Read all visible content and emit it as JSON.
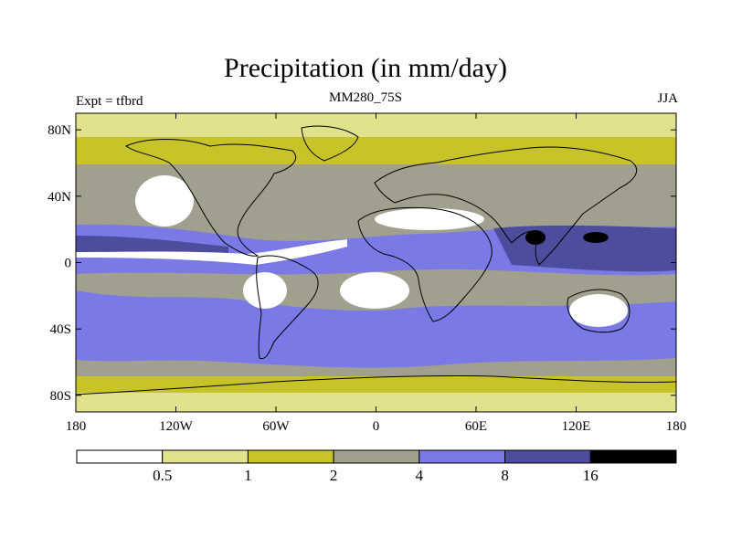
{
  "title": "Precipitation (in mm/day)",
  "experiment_label": "Expt = tfbrd",
  "case_label": "MM280_75S",
  "season_label": "JJA",
  "y_ticks": [
    {
      "lat": 80,
      "label": "80N"
    },
    {
      "lat": 40,
      "label": "40N"
    },
    {
      "lat": 0,
      "label": "0"
    },
    {
      "lat": -40,
      "label": "40S"
    },
    {
      "lat": -80,
      "label": "80S"
    }
  ],
  "x_ticks": [
    {
      "lon": -180,
      "label": "180"
    },
    {
      "lon": -120,
      "label": "120W"
    },
    {
      "lon": -60,
      "label": "60W"
    },
    {
      "lon": 0,
      "label": "0"
    },
    {
      "lon": 60,
      "label": "60E"
    },
    {
      "lon": 120,
      "label": "120E"
    },
    {
      "lon": 180,
      "label": "180"
    }
  ],
  "colorbar": {
    "colors": [
      "#ffffff",
      "#e1e28c",
      "#c8c328",
      "#a1a08e",
      "#7a7ae6",
      "#4d4d9e",
      "#000000"
    ],
    "labels": [
      "0.5",
      "1",
      "2",
      "4",
      "8",
      "16"
    ]
  },
  "colors": {
    "band_polar": "#e1e28c",
    "band_subpolar": "#c8c328",
    "band_mid": "#a1a08e",
    "band_storm": "#7a7ae6",
    "band_heavy": "#4d4d9e",
    "dry": "#ffffff",
    "extreme": "#000000",
    "coast": "#000000"
  }
}
